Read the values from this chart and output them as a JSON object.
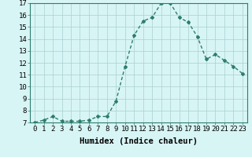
{
  "x": [
    0,
    1,
    2,
    3,
    4,
    5,
    6,
    7,
    8,
    9,
    10,
    11,
    12,
    13,
    14,
    15,
    16,
    17,
    18,
    19,
    20,
    21,
    22,
    23
  ],
  "y": [
    7.0,
    7.2,
    7.5,
    7.1,
    7.1,
    7.1,
    7.2,
    7.5,
    7.5,
    8.8,
    11.7,
    14.3,
    15.5,
    15.8,
    17.0,
    17.0,
    15.8,
    15.4,
    14.2,
    12.3,
    12.7,
    12.2,
    11.7,
    11.1
  ],
  "line_color": "#2e7d6e",
  "bg_color": "#d8f5f5",
  "grid_color": "#aacfcf",
  "xlabel": "Humidex (Indice chaleur)",
  "xlim": [
    -0.5,
    23.5
  ],
  "ylim": [
    7,
    17
  ],
  "yticks": [
    7,
    8,
    9,
    10,
    11,
    12,
    13,
    14,
    15,
    16,
    17
  ],
  "xticks": [
    0,
    1,
    2,
    3,
    4,
    5,
    6,
    7,
    8,
    9,
    10,
    11,
    12,
    13,
    14,
    15,
    16,
    17,
    18,
    19,
    20,
    21,
    22,
    23
  ],
  "xtick_labels": [
    "0",
    "1",
    "2",
    "3",
    "4",
    "5",
    "6",
    "7",
    "8",
    "9",
    "10",
    "11",
    "12",
    "13",
    "14",
    "15",
    "16",
    "17",
    "18",
    "19",
    "20",
    "21",
    "22",
    "23"
  ],
  "marker": "D",
  "marker_size": 2.0,
  "line_width": 1.0,
  "xlabel_fontsize": 7.5,
  "tick_fontsize": 6.5
}
